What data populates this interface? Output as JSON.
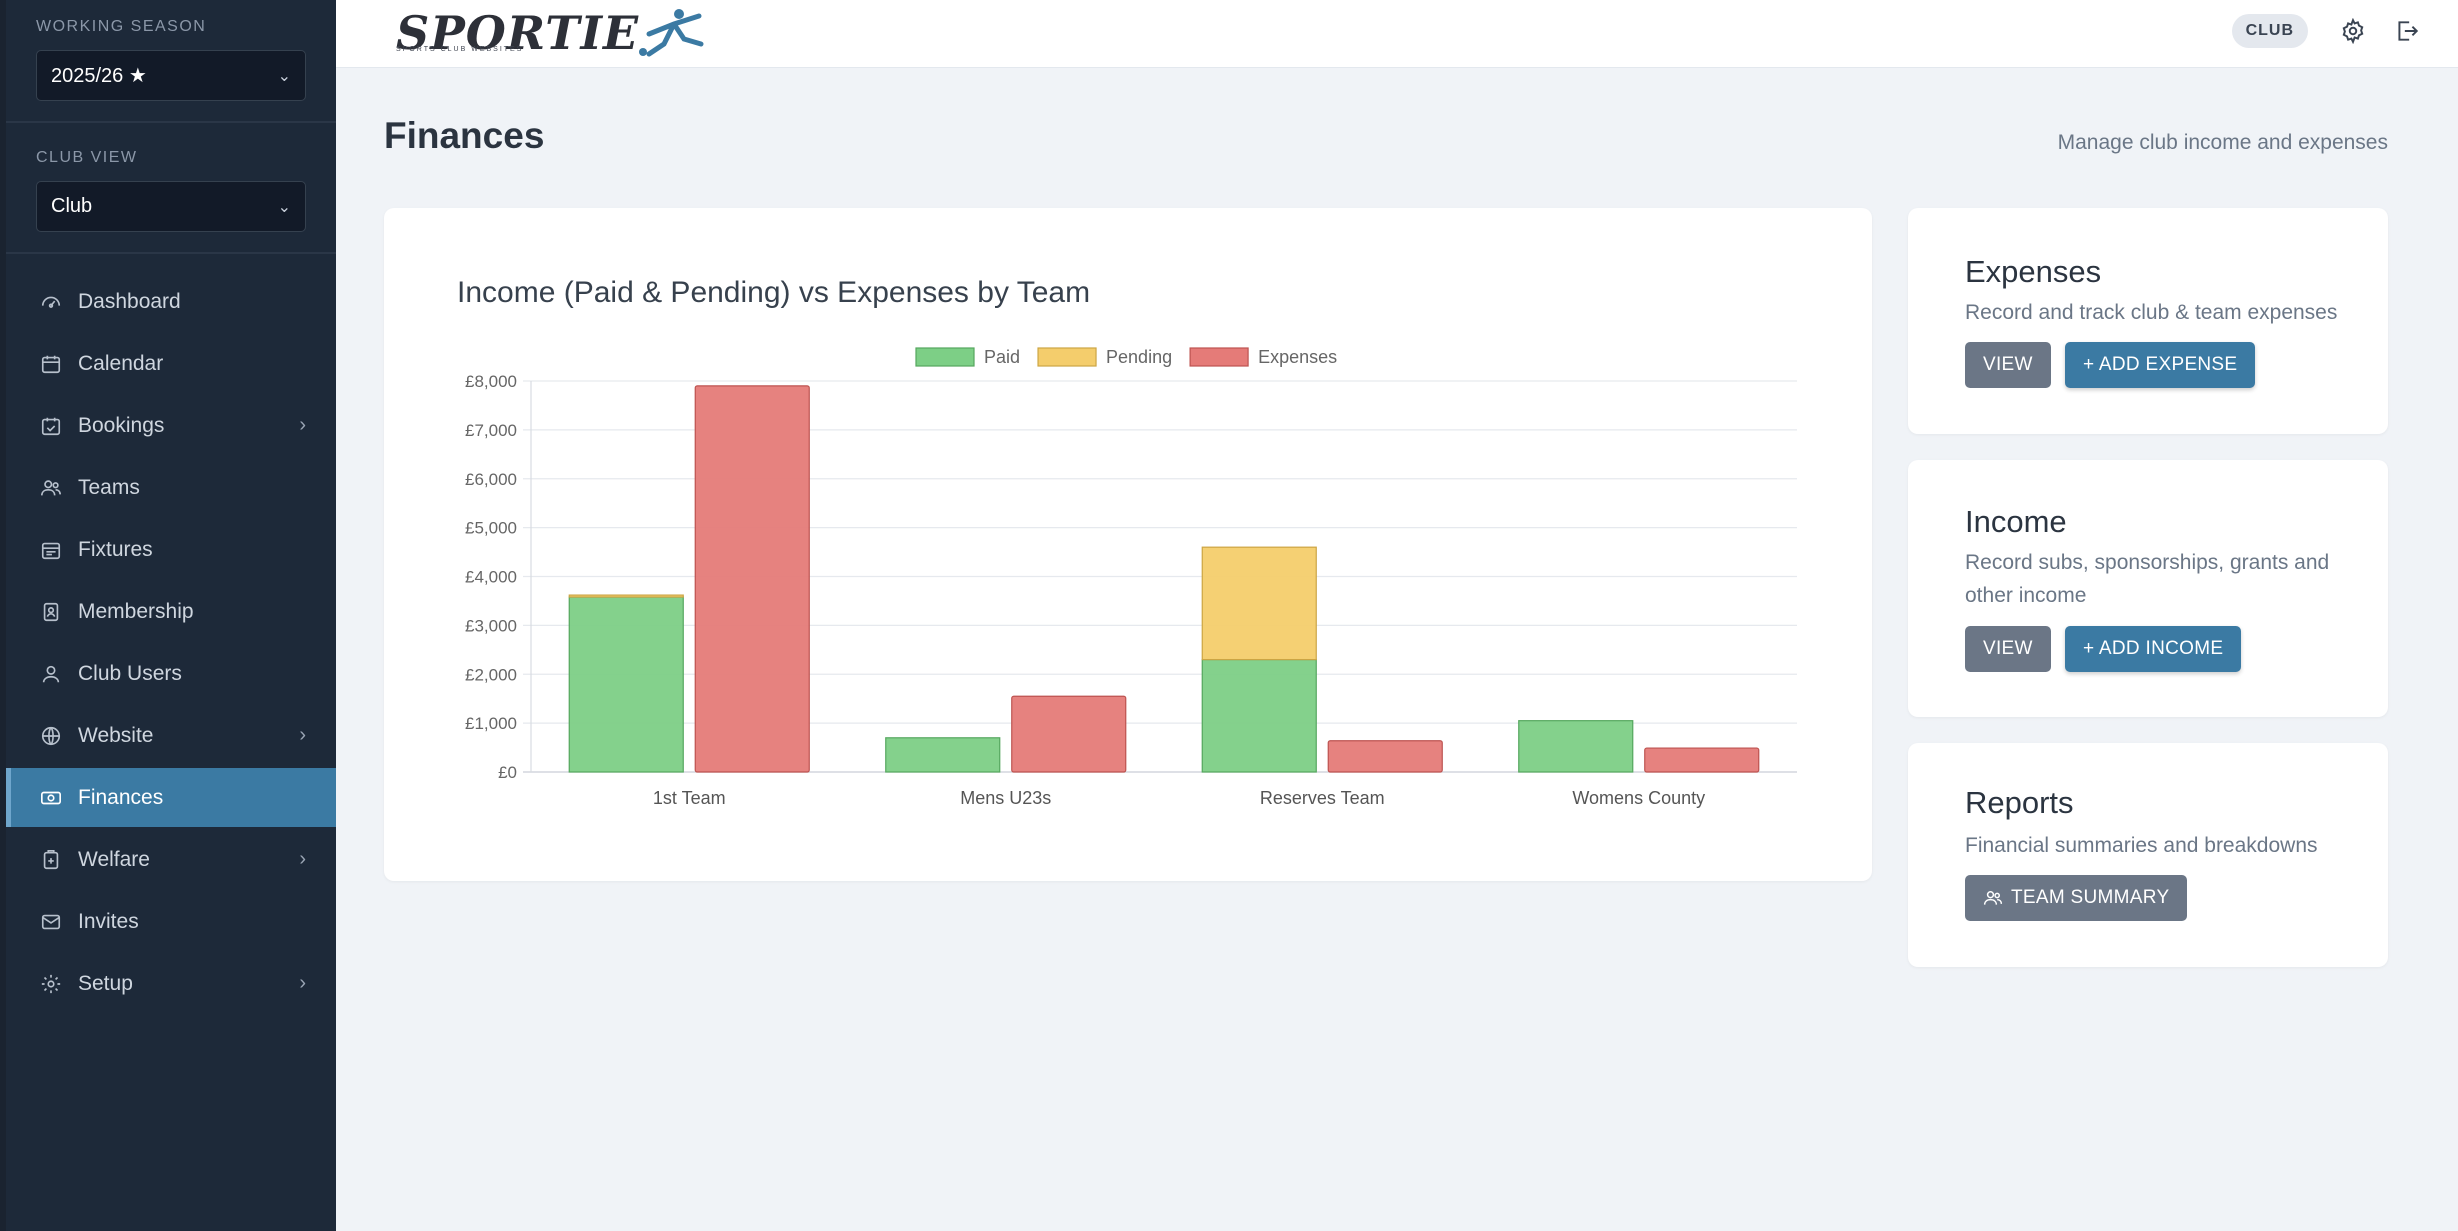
{
  "sidebar": {
    "season_label": "WORKING SEASON",
    "season_value": "2025/26 ★",
    "clubview_label": "CLUB VIEW",
    "clubview_value": "Club",
    "items": [
      {
        "label": "Dashboard",
        "icon": "dashboard-icon"
      },
      {
        "label": "Calendar",
        "icon": "calendar-icon"
      },
      {
        "label": "Bookings",
        "icon": "calendar-check-icon",
        "arrow": "›"
      },
      {
        "label": "Teams",
        "icon": "teams-icon"
      },
      {
        "label": "Fixtures",
        "icon": "fixtures-icon"
      },
      {
        "label": "Membership",
        "icon": "membership-icon"
      },
      {
        "label": "Club Users",
        "icon": "user-icon"
      },
      {
        "label": "Website",
        "icon": "globe-icon",
        "arrow": "›"
      },
      {
        "label": "Finances",
        "icon": "cash-icon",
        "active": true
      },
      {
        "label": "Welfare",
        "icon": "welfare-icon",
        "arrow": "›"
      },
      {
        "label": "Invites",
        "icon": "envelope-icon"
      },
      {
        "label": "Setup",
        "icon": "gear-icon",
        "arrow": "›"
      }
    ]
  },
  "topbar": {
    "logo_text": "SPORTIE",
    "logo_sub": "SPORTS CLUB WEBSITES",
    "club_badge": "CLUB"
  },
  "page": {
    "title": "Finances",
    "subtitle": "Manage club income and expenses"
  },
  "cards": {
    "expenses": {
      "title": "Expenses",
      "desc": "Record and track club & team expenses",
      "view": "VIEW",
      "add": "+ ADD EXPENSE"
    },
    "income": {
      "title": "Income",
      "desc": "Record subs, sponsorships, grants and other income",
      "view": "VIEW",
      "add": "+ ADD INCOME"
    },
    "reports": {
      "title": "Reports",
      "desc": "Financial summaries and breakdowns",
      "team_summary": "TEAM SUMMARY"
    }
  },
  "colors": {
    "paid": "#7dcf86",
    "pending": "#f4cd6c",
    "expenses": "#e57b78",
    "accent": "#3b7aa3"
  },
  "chart_data": {
    "type": "bar",
    "title": "Income (Paid & Pending) vs Expenses by Team",
    "categories": [
      "1st Team",
      "Mens U23s",
      "Reserves Team",
      "Womens County"
    ],
    "stacked_income": true,
    "series": [
      {
        "name": "Paid",
        "stack": "income",
        "values": [
          3580,
          700,
          2300,
          1050
        ]
      },
      {
        "name": "Pending",
        "stack": "income",
        "values": [
          40,
          0,
          2300,
          0
        ]
      },
      {
        "name": "Expenses",
        "stack": "expenses",
        "values": [
          7900,
          1550,
          640,
          490
        ]
      }
    ],
    "y_ticks": [
      "£0",
      "£1,000",
      "£2,000",
      "£3,000",
      "£4,000",
      "£5,000",
      "£6,000",
      "£7,000",
      "£8,000"
    ],
    "ylim": [
      0,
      8000
    ],
    "legend_position": "top",
    "grid": true
  }
}
